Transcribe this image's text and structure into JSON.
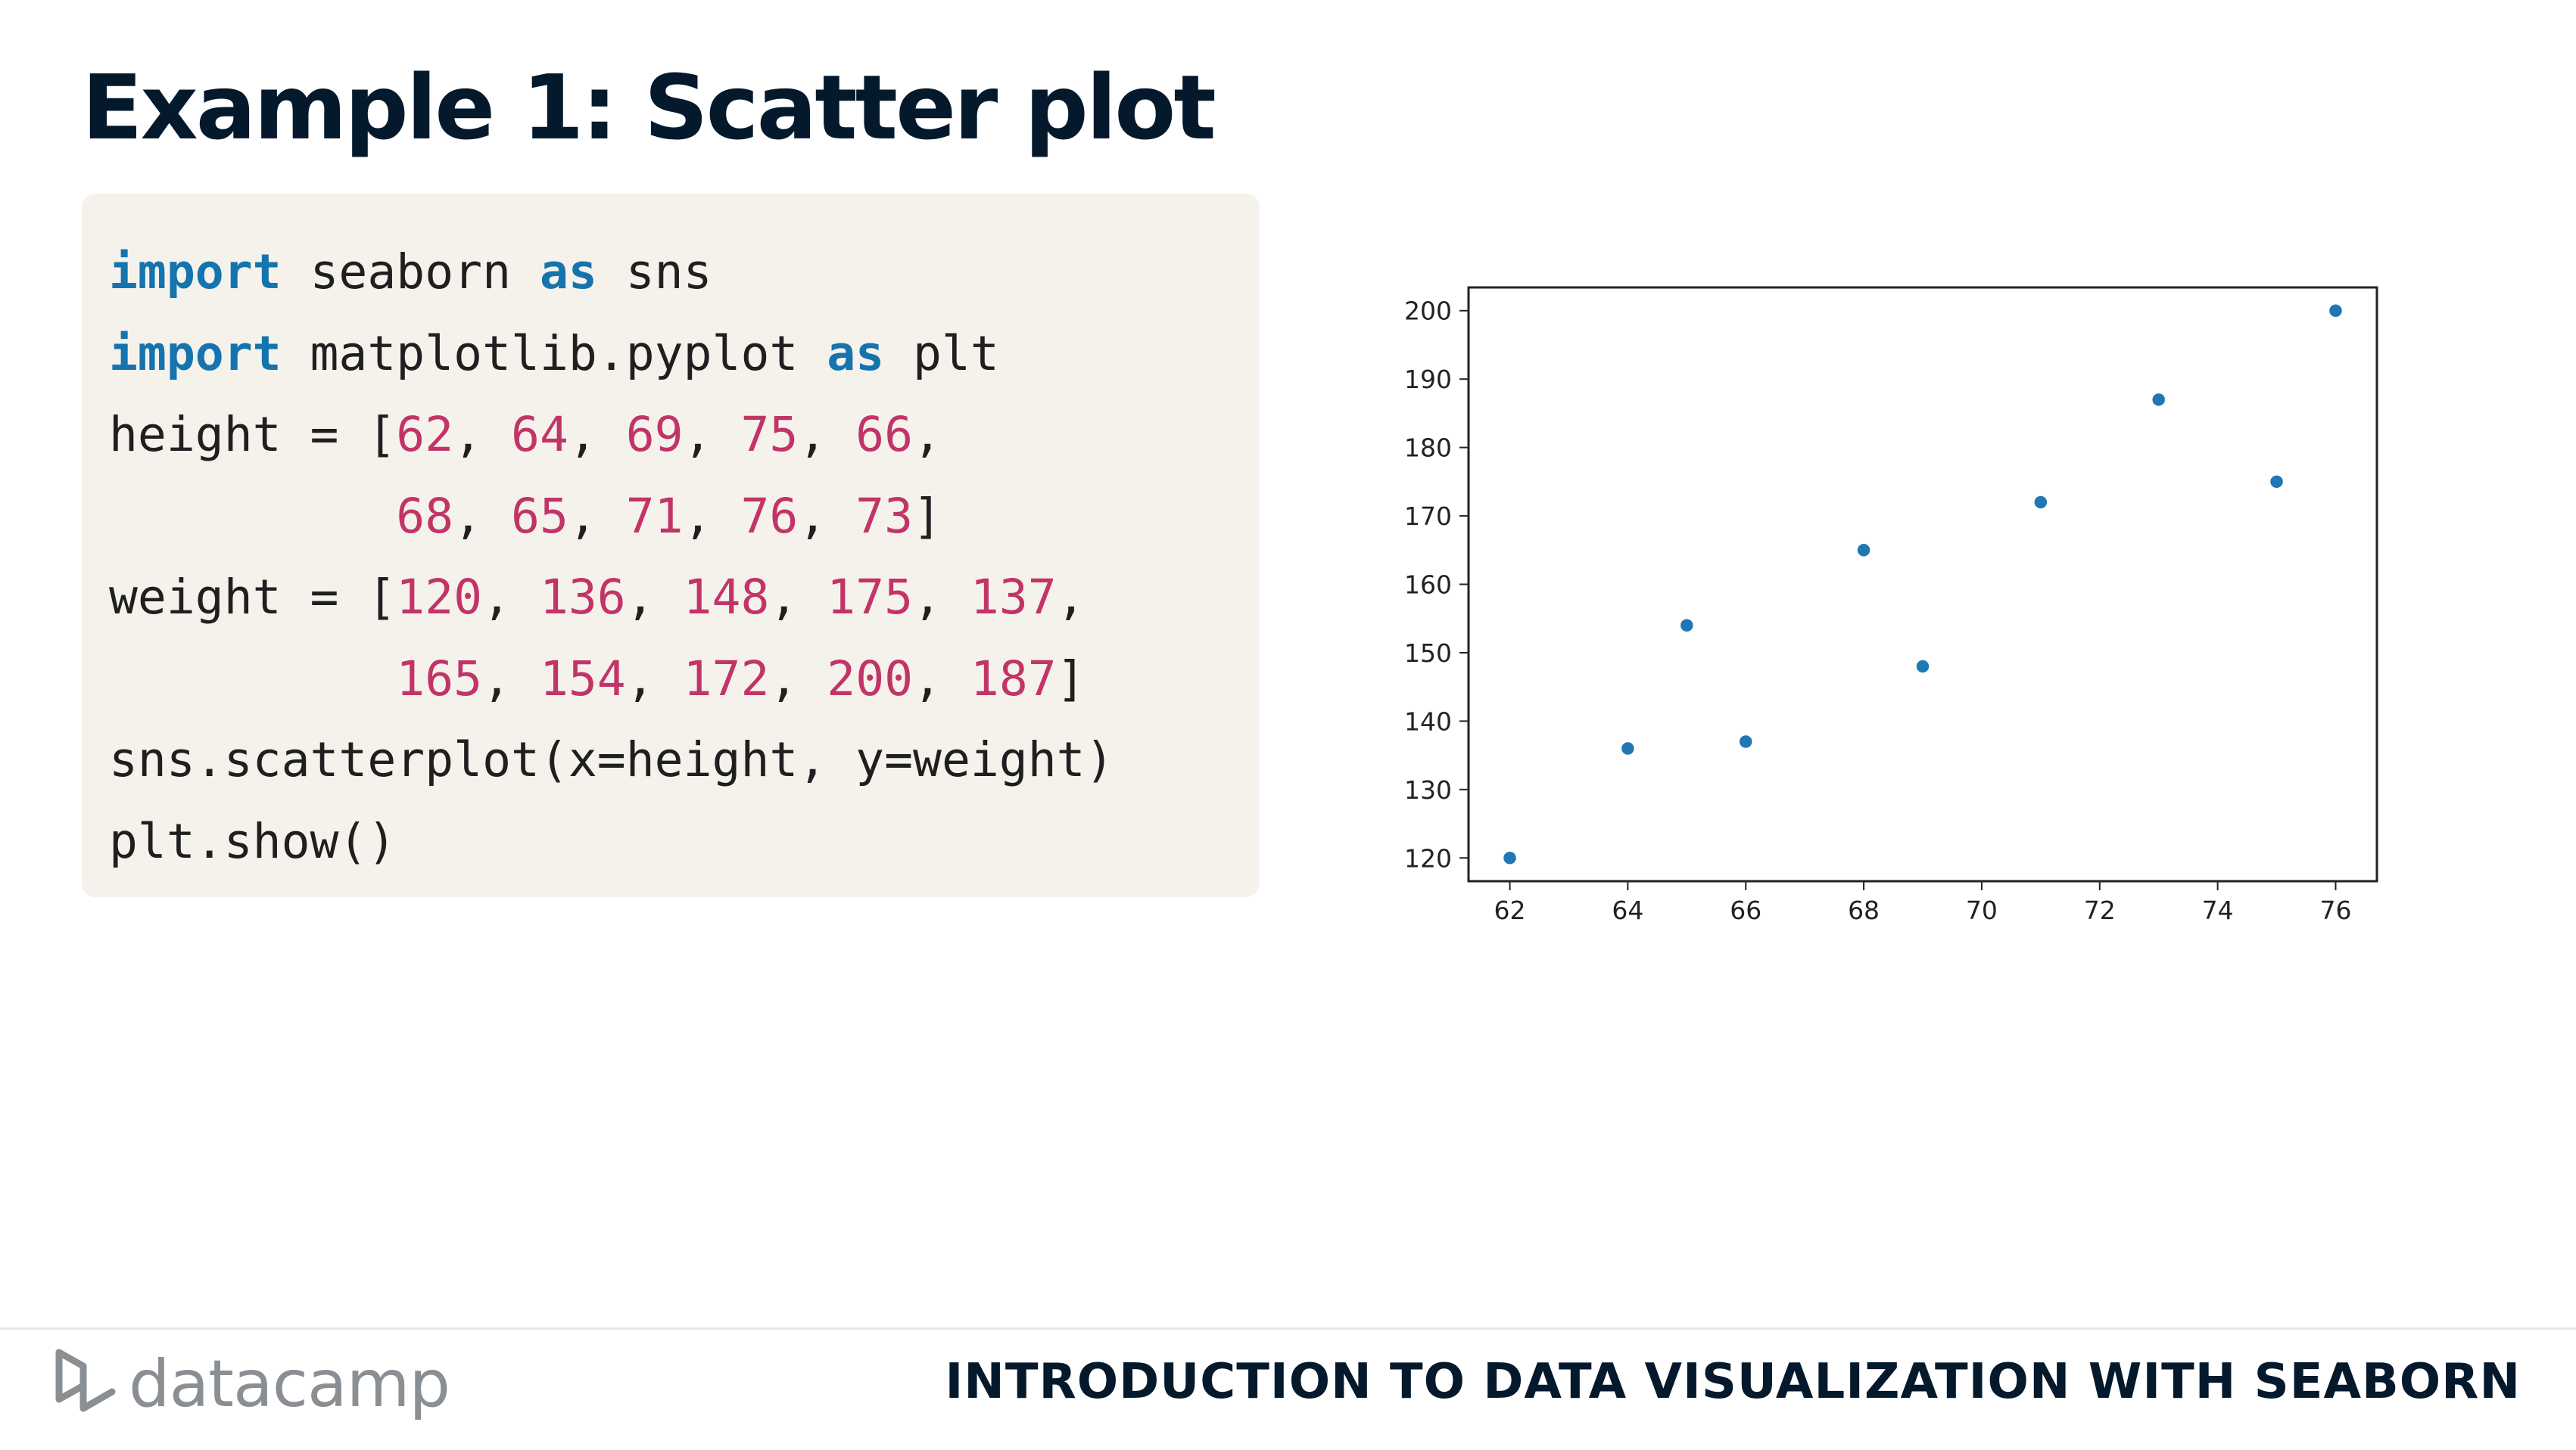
{
  "slide": {
    "title": "Example 1: Scatter plot"
  },
  "code": {
    "lines": [
      [
        {
          "t": "import",
          "c": "kw"
        },
        {
          "t": " seaborn "
        },
        {
          "t": "as",
          "c": "kw"
        },
        {
          "t": " sns"
        }
      ],
      [
        {
          "t": "import",
          "c": "kw"
        },
        {
          "t": " matplotlib.pyplot "
        },
        {
          "t": "as",
          "c": "kw"
        },
        {
          "t": " plt"
        }
      ],
      [
        {
          "t": "height = ["
        },
        {
          "t": "62",
          "c": "num"
        },
        {
          "t": ", "
        },
        {
          "t": "64",
          "c": "num"
        },
        {
          "t": ", "
        },
        {
          "t": "69",
          "c": "num"
        },
        {
          "t": ", "
        },
        {
          "t": "75",
          "c": "num"
        },
        {
          "t": ", "
        },
        {
          "t": "66",
          "c": "num"
        },
        {
          "t": ","
        }
      ],
      [
        {
          "t": "          "
        },
        {
          "t": "68",
          "c": "num"
        },
        {
          "t": ", "
        },
        {
          "t": "65",
          "c": "num"
        },
        {
          "t": ", "
        },
        {
          "t": "71",
          "c": "num"
        },
        {
          "t": ", "
        },
        {
          "t": "76",
          "c": "num"
        },
        {
          "t": ", "
        },
        {
          "t": "73",
          "c": "num"
        },
        {
          "t": "]"
        }
      ],
      [
        {
          "t": "weight = ["
        },
        {
          "t": "120",
          "c": "num"
        },
        {
          "t": ", "
        },
        {
          "t": "136",
          "c": "num"
        },
        {
          "t": ", "
        },
        {
          "t": "148",
          "c": "num"
        },
        {
          "t": ", "
        },
        {
          "t": "175",
          "c": "num"
        },
        {
          "t": ", "
        },
        {
          "t": "137",
          "c": "num"
        },
        {
          "t": ","
        }
      ],
      [
        {
          "t": "          "
        },
        {
          "t": "165",
          "c": "num"
        },
        {
          "t": ", "
        },
        {
          "t": "154",
          "c": "num"
        },
        {
          "t": ", "
        },
        {
          "t": "172",
          "c": "num"
        },
        {
          "t": ", "
        },
        {
          "t": "200",
          "c": "num"
        },
        {
          "t": ", "
        },
        {
          "t": "187",
          "c": "num"
        },
        {
          "t": "]"
        }
      ],
      [
        {
          "t": "sns.scatterplot(x=height, y=weight)"
        }
      ],
      [
        {
          "t": "plt.show()"
        }
      ]
    ]
  },
  "chart_data": {
    "type": "scatter",
    "title": "",
    "xlabel": "",
    "ylabel": "",
    "points": [
      {
        "x": 62,
        "y": 120
      },
      {
        "x": 64,
        "y": 136
      },
      {
        "x": 69,
        "y": 148
      },
      {
        "x": 75,
        "y": 175
      },
      {
        "x": 66,
        "y": 137
      },
      {
        "x": 68,
        "y": 165
      },
      {
        "x": 65,
        "y": 154
      },
      {
        "x": 71,
        "y": 172
      },
      {
        "x": 76,
        "y": 200
      },
      {
        "x": 73,
        "y": 187
      }
    ],
    "xlim": [
      61.3,
      76.7
    ],
    "ylim": [
      116.6,
      203.4
    ],
    "xticks": [
      62,
      64,
      66,
      68,
      70,
      72,
      74,
      76
    ],
    "yticks": [
      120,
      130,
      140,
      150,
      160,
      170,
      180,
      190,
      200
    ],
    "grid": false,
    "colors": {
      "point": "#1f77b4",
      "axes": "#222222"
    }
  },
  "footer": {
    "logo_text": "datacamp",
    "course": "INTRODUCTION TO DATA VISUALIZATION WITH SEABORN"
  }
}
